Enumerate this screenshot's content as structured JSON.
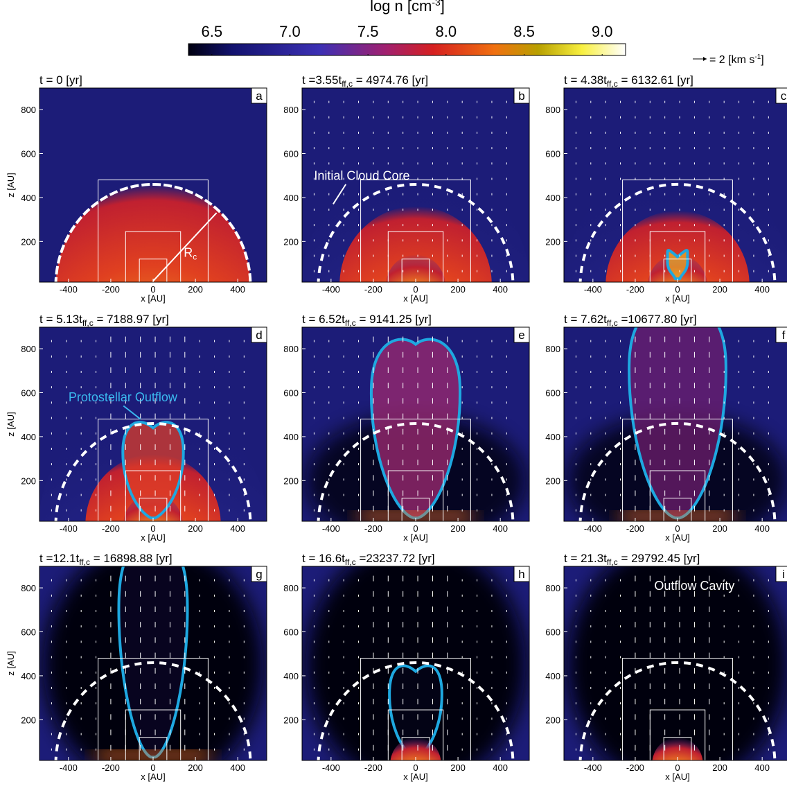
{
  "colorbar": {
    "label": [
      "log n [cm",
      "-3",
      "]"
    ],
    "lim": [
      6.35,
      9.15
    ],
    "ticks": [
      6.5,
      {
        "value": 7,
        "label": "7.0"
      },
      7.5,
      {
        "value": 8,
        "label": "8.0"
      },
      8.5,
      {
        "value": 9,
        "label": "9.0"
      }
    ]
  },
  "velocity_key": [
    "= 2 [km s",
    "-1",
    "]"
  ],
  "axes": {
    "xlim": [
      -537,
      537
    ],
    "ylim": [
      15,
      898
    ],
    "xticks": [
      -400,
      -200,
      0,
      200,
      400
    ],
    "yticks": [
      200,
      400,
      600,
      800
    ],
    "xlabel": "x [AU]",
    "ylabel": "z [AU]"
  },
  "panels": [
    {
      "title": [
        "t = 0 [yr]"
      ],
      "letter": "a"
    },
    {
      "title": [
        "t =3.55t",
        "ff,c",
        " = 4974.76 [yr]"
      ],
      "letter": "b"
    },
    {
      "title": [
        "t = 4.38t",
        "ff,c",
        " = 6132.61 [yr]"
      ],
      "letter": "c"
    },
    {
      "title": [
        "t = 5.13t",
        "ff,c",
        " = 7188.97 [yr]"
      ],
      "letter": "d"
    },
    {
      "title": [
        "t = 6.52t",
        "ff,c",
        " = 9141.25 [yr]"
      ],
      "letter": "e"
    },
    {
      "title": [
        "t = 7.62t",
        "ff,c",
        " =10677.80 [yr]"
      ],
      "letter": "f"
    },
    {
      "title": [
        "t =12.1t",
        "ff,c",
        " = 16898.88 [yr]"
      ],
      "letter": "g"
    },
    {
      "title": [
        "t = 16.6t",
        "ff,c",
        " =23237.72 [yr]"
      ],
      "letter": "h"
    },
    {
      "title": [
        "t = 21.3t",
        "ff,c",
        " = 29792.45 [yr]"
      ],
      "letter": "i"
    }
  ],
  "annotations": {
    "rc": [
      "R",
      "c"
    ],
    "initial_core": "Initial Cloud Core",
    "outflow": "Protostellar Outflow",
    "cavity": "Outflow Cavity"
  }
}
